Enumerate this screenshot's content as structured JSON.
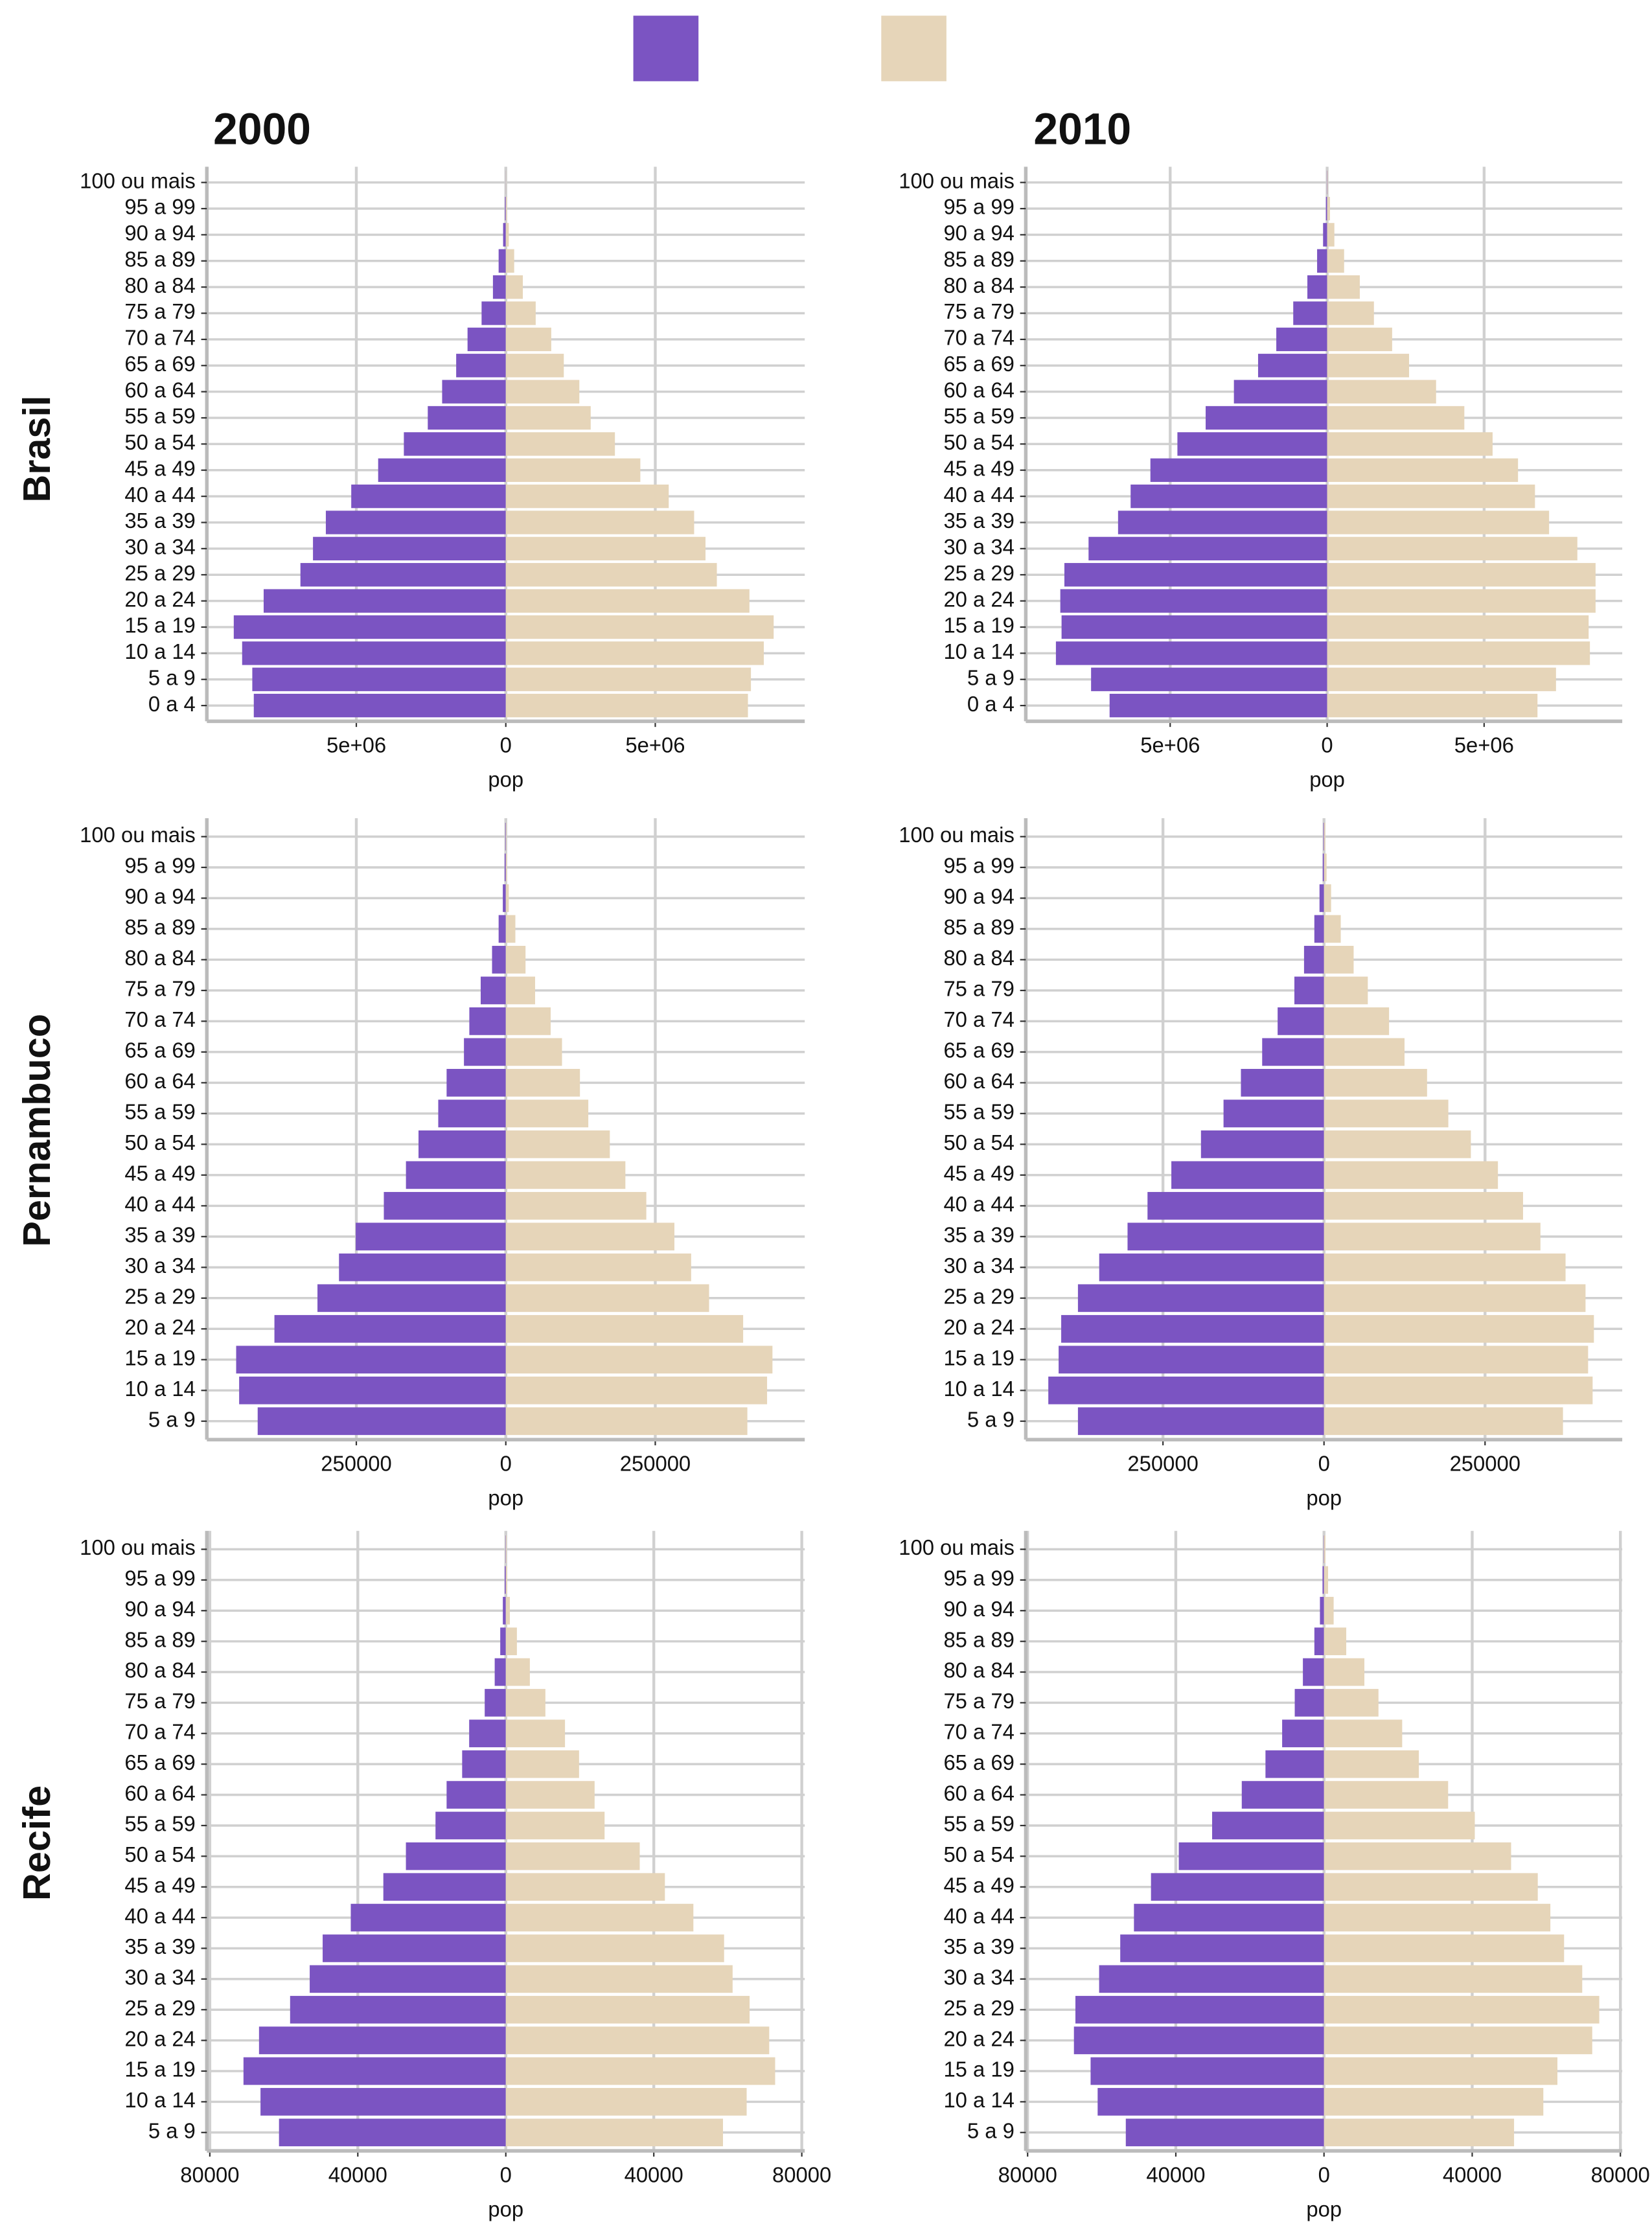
{
  "column_titles": [
    "2000",
    "2010"
  ],
  "row_titles": [
    "Brasil",
    "Pernambuco",
    "Recife"
  ],
  "chart_data": [
    {
      "type": "bar",
      "orientation": "horizontal",
      "xlabel": "pop",
      "grid": true,
      "categories": [
        "0 a 4",
        "5 a 9",
        "10 a 14",
        "15 a 19",
        "20 a 24",
        "25 a 29",
        "30 a 34",
        "35 a 39",
        "40 a 44",
        "45 a 49",
        "50 a 54",
        "55 a 59",
        "60 a 64",
        "65 a 69",
        "70 a 74",
        "75 a 79",
        "80 a 84",
        "85 a 89",
        "90 a 94",
        "95 a 99",
        "100 ou mais"
      ],
      "series": [
        {
          "color": "#7b54c2",
          "values": [
            -8430000,
            -8480000,
            -8820000,
            -9100000,
            -8100000,
            -6870000,
            -6450000,
            -6020000,
            -5170000,
            -4270000,
            -3410000,
            -2610000,
            -2130000,
            -1660000,
            -1280000,
            -810000,
            -430000,
            -240000,
            -90000,
            -30000,
            -5000
          ]
        },
        {
          "color": "#e6d5b9",
          "values": [
            8100000,
            8200000,
            8630000,
            8960000,
            8150000,
            7060000,
            6680000,
            6300000,
            5450000,
            4500000,
            3650000,
            2840000,
            2460000,
            1940000,
            1520000,
            1000000,
            570000,
            280000,
            100000,
            40000,
            10000
          ]
        }
      ],
      "xlim": [
        -10000000,
        10000000
      ],
      "xticks": [
        {
          "value": -5000000,
          "label": "5e+06"
        },
        0,
        {
          "value": 5000000,
          "label": "5e+06"
        }
      ]
    },
    {
      "type": "bar",
      "orientation": "horizontal",
      "xlabel": "pop",
      "grid": true,
      "categories": [
        "0 a 4",
        "5 a 9",
        "10 a 14",
        "15 a 19",
        "20 a 24",
        "25 a 29",
        "30 a 34",
        "35 a 39",
        "40 a 44",
        "45 a 49",
        "50 a 54",
        "55 a 59",
        "60 a 64",
        "65 a 69",
        "70 a 74",
        "75 a 79",
        "80 a 84",
        "85 a 89",
        "90 a 94",
        "95 a 99",
        "100 ou mais"
      ],
      "series": [
        {
          "color": "#7b54c2",
          "values": [
            -6930000,
            -7520000,
            -8640000,
            -8460000,
            -8500000,
            -8370000,
            -7600000,
            -6660000,
            -6260000,
            -5630000,
            -4770000,
            -3870000,
            -2970000,
            -2200000,
            -1620000,
            -1080000,
            -630000,
            -320000,
            -130000,
            -40000,
            -10000
          ]
        },
        {
          "color": "#e6d5b9",
          "values": [
            6700000,
            7290000,
            8370000,
            8330000,
            8550000,
            8550000,
            7970000,
            7070000,
            6620000,
            6080000,
            5270000,
            4370000,
            3470000,
            2610000,
            2070000,
            1490000,
            1040000,
            540000,
            230000,
            90000,
            20000
          ]
        }
      ],
      "xlim": [
        -9600000,
        9400000
      ],
      "xticks": [
        {
          "value": -5000000,
          "label": "5e+06"
        },
        0,
        {
          "value": 5000000,
          "label": "5e+06"
        }
      ]
    },
    {
      "type": "bar",
      "orientation": "horizontal",
      "xlabel": "pop",
      "grid": true,
      "categories": [
        "5 a 9",
        "10 a 14",
        "15 a 19",
        "20 a 24",
        "25 a 29",
        "30 a 34",
        "35 a 39",
        "40 a 44",
        "45 a 49",
        "50 a 54",
        "55 a 59",
        "60 a 64",
        "65 a 69",
        "70 a 74",
        "75 a 79",
        "80 a 84",
        "85 a 89",
        "90 a 94",
        "95 a 99",
        "100 ou mais"
      ],
      "series": [
        {
          "color": "#7b54c2",
          "values": [
            -415000,
            -446000,
            -451000,
            -387000,
            -315000,
            -279000,
            -251000,
            -204000,
            -167000,
            -146000,
            -113000,
            -99000,
            -70000,
            -61000,
            -42000,
            -23000,
            -12000,
            -5000,
            -2000,
            -1000
          ]
        },
        {
          "color": "#e6d5b9",
          "values": [
            404000,
            437000,
            446000,
            397000,
            340000,
            310000,
            282000,
            235000,
            200000,
            174000,
            138000,
            124000,
            94000,
            75000,
            49000,
            33000,
            16000,
            5000,
            2000,
            1000
          ]
        }
      ],
      "xlim": [
        -500000,
        500000
      ],
      "xticks": [
        {
          "value": -250000,
          "label": "250000"
        },
        0,
        250000
      ]
    },
    {
      "type": "bar",
      "orientation": "horizontal",
      "xlabel": "pop",
      "grid": true,
      "categories": [
        "5 a 9",
        "10 a 14",
        "15 a 19",
        "20 a 24",
        "25 a 29",
        "30 a 34",
        "35 a 39",
        "40 a 44",
        "45 a 49",
        "50 a 54",
        "55 a 59",
        "60 a 64",
        "65 a 69",
        "70 a 74",
        "75 a 79",
        "80 a 84",
        "85 a 89",
        "90 a 94",
        "95 a 99",
        "100 ou mais"
      ],
      "series": [
        {
          "color": "#7b54c2",
          "values": [
            -382000,
            -428000,
            -412000,
            -408000,
            -382000,
            -349000,
            -305000,
            -274000,
            -237000,
            -191000,
            -156000,
            -129000,
            -96000,
            -72000,
            -46000,
            -31000,
            -15000,
            -7000,
            -2000,
            -1000
          ]
        },
        {
          "color": "#e6d5b9",
          "values": [
            371000,
            417000,
            410000,
            419000,
            406000,
            375000,
            336000,
            309000,
            270000,
            228000,
            193000,
            160000,
            125000,
            101000,
            68000,
            46000,
            26000,
            11000,
            4000,
            2000
          ]
        }
      ],
      "xlim": [
        -463000,
        463000
      ],
      "xticks": [
        {
          "value": -250000,
          "label": "250000"
        },
        0,
        250000
      ]
    },
    {
      "type": "bar",
      "orientation": "horizontal",
      "xlabel": "pop",
      "grid": true,
      "categories": [
        "5 a 9",
        "10 a 14",
        "15 a 19",
        "20 a 24",
        "25 a 29",
        "30 a 34",
        "35 a 39",
        "40 a 44",
        "45 a 49",
        "50 a 54",
        "55 a 59",
        "60 a 64",
        "65 a 69",
        "70 a 74",
        "75 a 79",
        "80 a 84",
        "85 a 89",
        "90 a 94",
        "95 a 99",
        "100 ou mais"
      ],
      "series": [
        {
          "color": "#7b54c2",
          "values": [
            -61300,
            -66300,
            -70900,
            -66700,
            -58300,
            -53000,
            -49500,
            -41900,
            -33100,
            -27000,
            -19000,
            -16000,
            -11800,
            -9900,
            -5700,
            -3000,
            -1500,
            -800,
            -300,
            -100
          ]
        },
        {
          "color": "#e6d5b9",
          "values": [
            58700,
            65100,
            72800,
            71200,
            65900,
            61300,
            59000,
            50700,
            43000,
            36200,
            26700,
            24000,
            19800,
            16000,
            10700,
            6500,
            3000,
            1100,
            400,
            200
          ]
        }
      ],
      "xlim": [
        -80800,
        80800
      ],
      "xticks": [
        {
          "value": -80000,
          "label": "80000"
        },
        {
          "value": -40000,
          "label": "40000"
        },
        0,
        40000,
        80000
      ]
    },
    {
      "type": "bar",
      "orientation": "horizontal",
      "xlabel": "pop",
      "grid": true,
      "categories": [
        "5 a 9",
        "10 a 14",
        "15 a 19",
        "20 a 24",
        "25 a 29",
        "30 a 34",
        "35 a 39",
        "40 a 44",
        "45 a 49",
        "50 a 54",
        "55 a 59",
        "60 a 64",
        "65 a 69",
        "70 a 74",
        "75 a 79",
        "80 a 84",
        "85 a 89",
        "90 a 94",
        "95 a 99",
        "100 ou mais"
      ],
      "series": [
        {
          "color": "#7b54c2",
          "values": [
            -53500,
            -61100,
            -63000,
            -67500,
            -67100,
            -60700,
            -55000,
            -51300,
            -46700,
            -39200,
            -30200,
            -22200,
            -15800,
            -11300,
            -7900,
            -5700,
            -2600,
            -1100,
            -400,
            -100
          ]
        },
        {
          "color": "#e6d5b9",
          "values": [
            51300,
            59200,
            63000,
            72400,
            74300,
            69700,
            64800,
            61100,
            57700,
            50500,
            40700,
            33500,
            25600,
            21100,
            14700,
            10900,
            6000,
            2600,
            1100,
            400
          ]
        }
      ],
      "xlim": [
        -80500,
        80500
      ],
      "xticks": [
        {
          "value": -80000,
          "label": "80000"
        },
        {
          "value": -40000,
          "label": "40000"
        },
        0,
        40000,
        80000
      ]
    }
  ]
}
